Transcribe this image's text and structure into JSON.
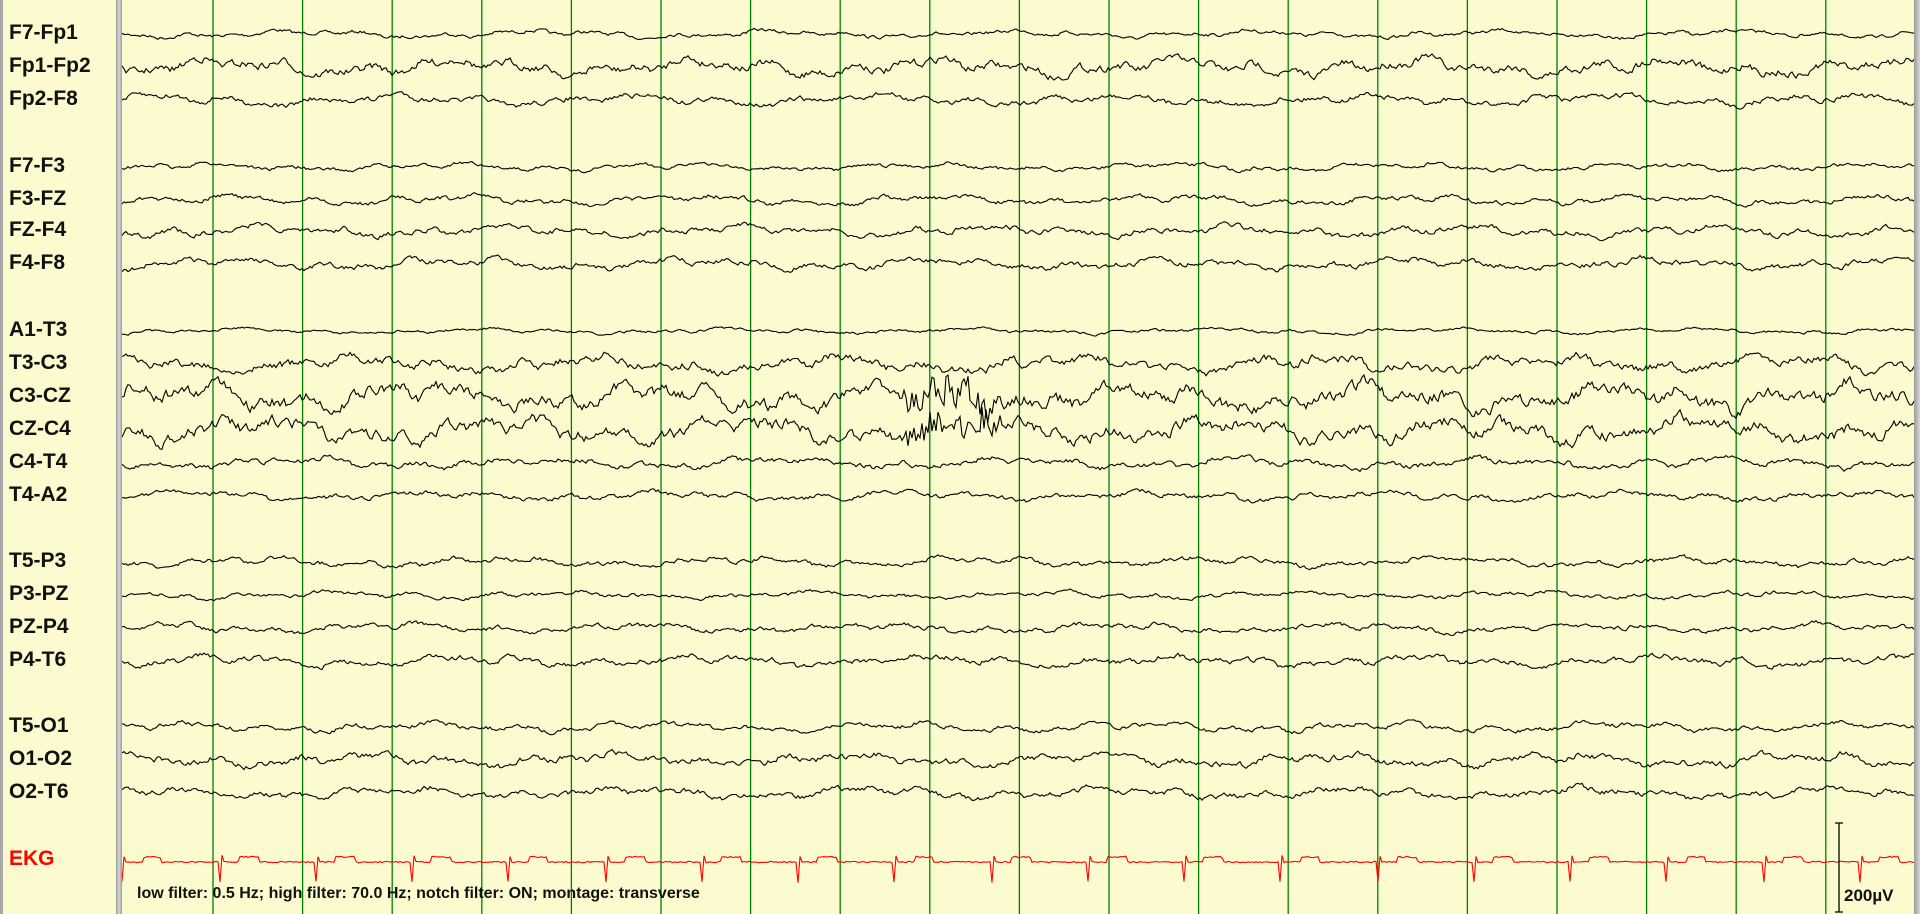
{
  "channels": [
    {
      "name": "F7-Fp1",
      "amp": 4,
      "color": "#000000"
    },
    {
      "name": "Fp1-Fp2",
      "amp": 9,
      "color": "#000000"
    },
    {
      "name": "Fp2-F8",
      "amp": 6,
      "color": "#000000"
    },
    {
      "name": "F7-F3",
      "amp": 4,
      "color": "#000000"
    },
    {
      "name": "F3-FZ",
      "amp": 5,
      "color": "#000000"
    },
    {
      "name": "FZ-F4",
      "amp": 6,
      "color": "#000000"
    },
    {
      "name": "F4-F8",
      "amp": 6,
      "color": "#000000"
    },
    {
      "name": "A1-T3",
      "amp": 3,
      "color": "#000000"
    },
    {
      "name": "T3-C3",
      "amp": 9,
      "color": "#000000"
    },
    {
      "name": "C3-CZ",
      "amp": 14,
      "color": "#000000"
    },
    {
      "name": "CZ-C4",
      "amp": 13,
      "color": "#000000"
    },
    {
      "name": "C4-T4",
      "amp": 6,
      "color": "#000000"
    },
    {
      "name": "T4-A2",
      "amp": 5,
      "color": "#000000"
    },
    {
      "name": "T5-P3",
      "amp": 5,
      "color": "#000000"
    },
    {
      "name": "P3-PZ",
      "amp": 4,
      "color": "#000000"
    },
    {
      "name": "PZ-P4",
      "amp": 5,
      "color": "#000000"
    },
    {
      "name": "P4-T6",
      "amp": 6,
      "color": "#000000"
    },
    {
      "name": "T5-O1",
      "amp": 5,
      "color": "#000000"
    },
    {
      "name": "O1-O2",
      "amp": 7,
      "color": "#000000"
    },
    {
      "name": "O2-T6",
      "amp": 6,
      "color": "#000000"
    },
    {
      "name": "EKG",
      "amp": 0,
      "color": "#ff0000",
      "ekg": true
    }
  ],
  "grid_color": "#008000",
  "background": "#fbfbcf",
  "footer": "low filter: 0.5 Hz; high filter: 70.0 Hz; notch filter: ON; montage: transverse",
  "scale_bar": "200µV"
}
